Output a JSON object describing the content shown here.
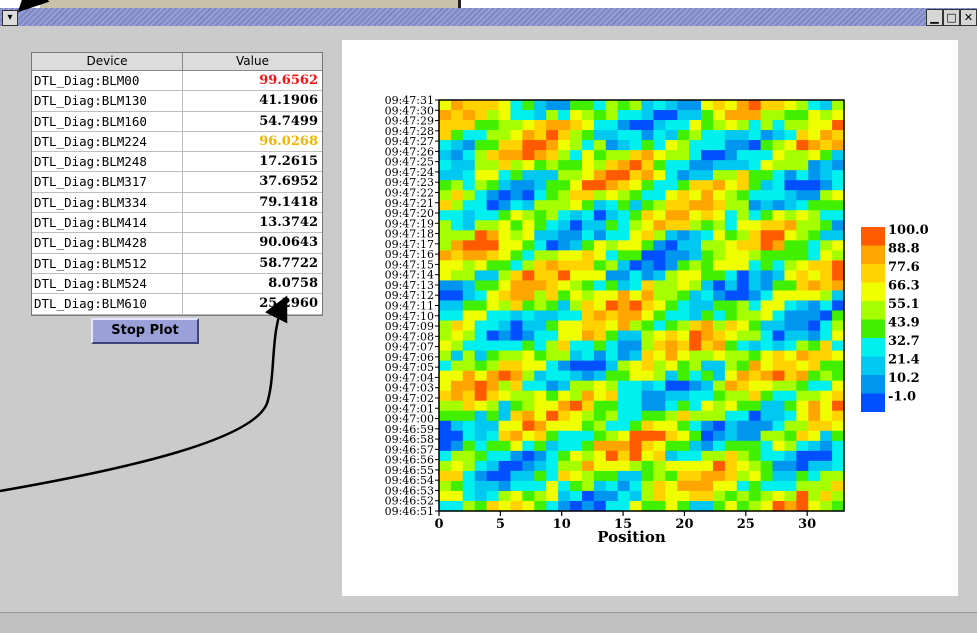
{
  "window": {
    "menu_icon": "chevron-down-icon",
    "minimize": "▁",
    "maximize": "□",
    "close": "✕"
  },
  "table": {
    "headers": [
      "Device",
      "Value"
    ],
    "rows": [
      {
        "device": "DTL_Diag:BLM00",
        "value": "99.6562",
        "color": "#ff1010"
      },
      {
        "device": "DTL_Diag:BLM130",
        "value": "41.1906",
        "color": "#000000"
      },
      {
        "device": "DTL_Diag:BLM160",
        "value": "54.7499",
        "color": "#000000"
      },
      {
        "device": "DTL_Diag:BLM224",
        "value": "96.0268",
        "color": "#f2b400"
      },
      {
        "device": "DTL_Diag:BLM248",
        "value": "17.2615",
        "color": "#000000"
      },
      {
        "device": "DTL_Diag:BLM317",
        "value": "37.6952",
        "color": "#000000"
      },
      {
        "device": "DTL_Diag:BLM334",
        "value": "79.1418",
        "color": "#000000"
      },
      {
        "device": "DTL_Diag:BLM414",
        "value": "13.3742",
        "color": "#000000"
      },
      {
        "device": "DTL_Diag:BLM428",
        "value": "90.0643",
        "color": "#000000"
      },
      {
        "device": "DTL_Diag:BLM512",
        "value": "58.7722",
        "color": "#000000"
      },
      {
        "device": "DTL_Diag:BLM524",
        "value": "8.0758",
        "color": "#000000"
      },
      {
        "device": "DTL_Diag:BLM610",
        "value": "25.2960",
        "color": "#000000"
      }
    ]
  },
  "stop_button": "Stop Plot",
  "chart_data": {
    "type": "heatmap",
    "xlabel": "Position",
    "xlim": [
      0,
      33
    ],
    "xticks": [
      0,
      5,
      10,
      15,
      20,
      25,
      30
    ],
    "ylabels": [
      "09:47:31",
      "09:47:30",
      "09:47:29",
      "09:47:28",
      "09:47:27",
      "09:47:26",
      "09:47:25",
      "09:47:24",
      "09:47:23",
      "09:47:22",
      "09:47:21",
      "09:47:20",
      "09:47:19",
      "09:47:18",
      "09:47:17",
      "09:47:16",
      "09:47:15",
      "09:47:14",
      "09:47:13",
      "09:47:12",
      "09:47:11",
      "09:47:10",
      "09:47:09",
      "09:47:08",
      "09:47:07",
      "09:47:06",
      "09:47:05",
      "09:47:04",
      "09:47:03",
      "09:47:02",
      "09:47:01",
      "09:47:00",
      "09:46:59",
      "09:46:58",
      "09:46:57",
      "09:46:56",
      "09:46:55",
      "09:46:54",
      "09:46:53",
      "09:46:52",
      "09:46:51"
    ],
    "legend": {
      "levels": [
        "100.0",
        "88.8",
        "77.6",
        "66.3",
        "55.1",
        "43.9",
        "32.7",
        "21.4",
        "10.2",
        "-1.0"
      ],
      "colors": [
        "#ff5a00",
        "#ffa500",
        "#ffd200",
        "#f0ff00",
        "#a6ff00",
        "#40f000",
        "#00f0f0",
        "#00c8f0",
        "#0096f0",
        "#0050ff"
      ]
    }
  }
}
